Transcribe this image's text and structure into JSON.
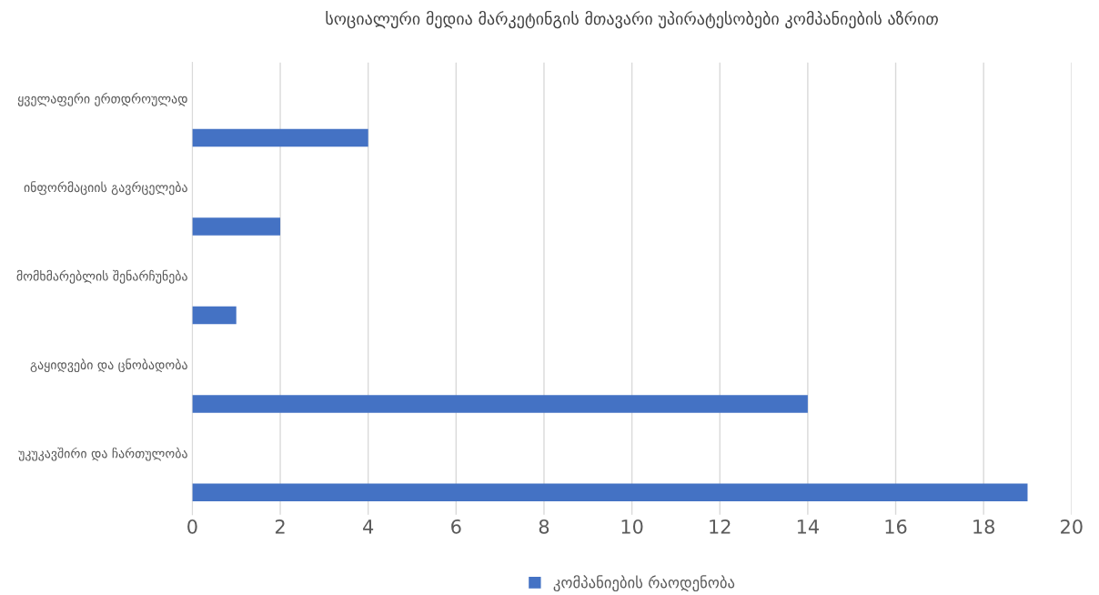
{
  "chart_data": {
    "type": "bar",
    "orientation": "horizontal",
    "title": "სოციალური მედია მარკეტინგის მთავარი უპირატესობები კომპანიების აზრით",
    "categories": [
      "ყველაფერი ერთდროულად",
      "ინფორმაციის გავრცელება",
      "მომხმარებლის შენარჩუნება",
      "გაყიდვები და ცნობადობა",
      "უკუკავშირი და ჩართულობა"
    ],
    "series": [
      {
        "name": "კომპანიების რაოდენობა",
        "color": "#4472c4",
        "values": [
          4,
          2,
          1,
          14,
          19
        ]
      }
    ],
    "xlim": [
      0,
      20
    ],
    "xticks": [
      0,
      2,
      4,
      6,
      8,
      10,
      12,
      14,
      16,
      18,
      20
    ],
    "grid": "x",
    "legend": "bottom"
  }
}
